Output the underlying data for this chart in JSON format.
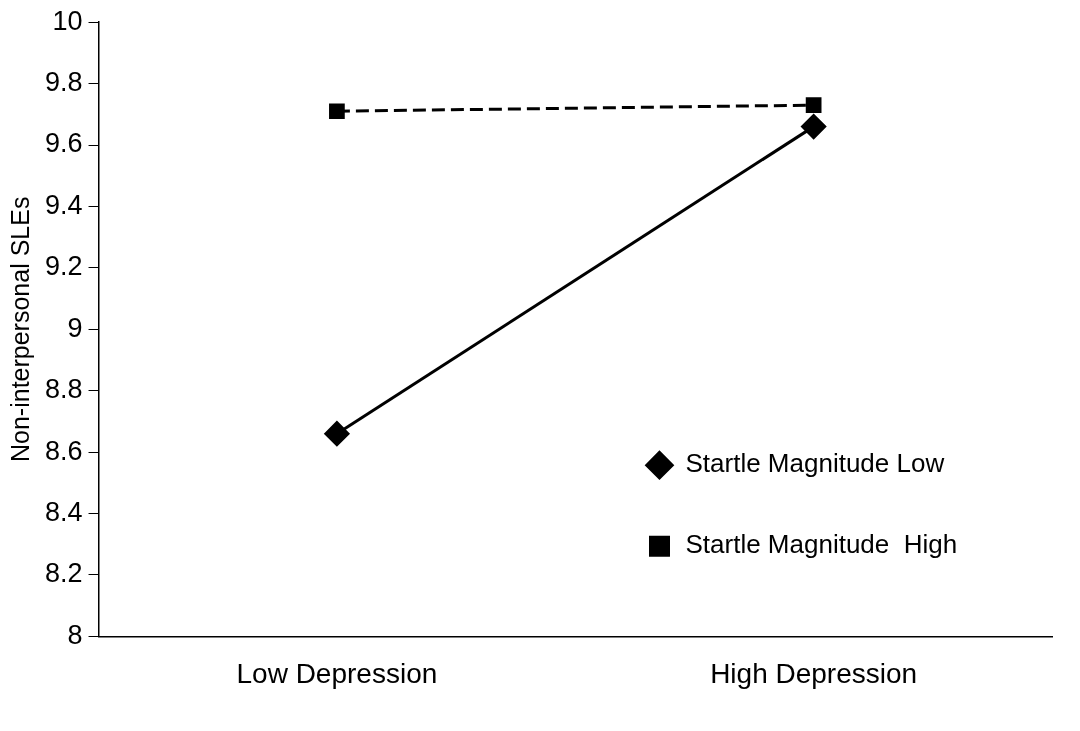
{
  "chart_data": {
    "type": "line",
    "ylabel": "Non-interpersonal SLEs",
    "categories": [
      "Low Depression",
      "High Depression"
    ],
    "series": [
      {
        "name": "Startle Magnitude Low",
        "color": "#000000",
        "values": [
          8.66,
          9.66
        ],
        "marker": "diamond",
        "line_style": "solid"
      },
      {
        "name": "Startle Magnitude  High",
        "color": "#000000",
        "values": [
          9.71,
          9.73
        ],
        "marker": "square",
        "line_style": "dashed"
      }
    ],
    "ylim": [
      8,
      10
    ],
    "yticks": [
      8,
      8.2,
      8.4,
      8.6,
      8.8,
      9,
      9.2,
      9.4,
      9.6,
      9.8,
      10
    ],
    "grid": false,
    "legend": "right"
  }
}
